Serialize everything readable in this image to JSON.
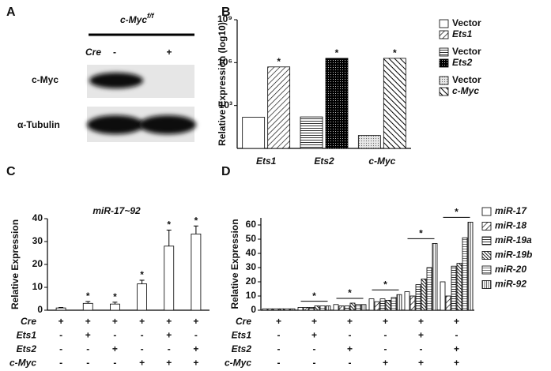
{
  "panel_labels": [
    "A",
    "B",
    "C",
    "D"
  ],
  "blot": {
    "header": "c-Myc",
    "header_sup": "f/f",
    "cre_label": "Cre",
    "lanes": [
      "-",
      "+"
    ],
    "rows": [
      "c-Myc",
      "α-Tubulin"
    ]
  },
  "chart_data": [
    {
      "type": "bar",
      "y_label": "Relative Expression (log10)",
      "log_scale": true,
      "categories": [
        "Ets1",
        "Ets2",
        "c-Myc"
      ],
      "ylim": [
        1,
        1000000000
      ],
      "yticks": [
        {
          "value": 1000,
          "label": "10³"
        },
        {
          "value": 1000000,
          "label": "10⁶"
        },
        {
          "value": 1000000000,
          "label": "10⁹"
        }
      ],
      "series": [
        {
          "name": "Vector",
          "pattern": "white",
          "italic": false,
          "values": [
            150,
            null,
            null
          ],
          "annotations": [
            null,
            null,
            null
          ]
        },
        {
          "name": "Ets1",
          "pattern": "diag",
          "italic": true,
          "values": [
            500000,
            null,
            null
          ],
          "annotations": [
            "*",
            null,
            null
          ]
        },
        {
          "name": "Vector",
          "pattern": "hstripe",
          "italic": false,
          "values": [
            null,
            160,
            null
          ],
          "annotations": [
            null,
            null,
            null
          ]
        },
        {
          "name": "Ets2",
          "pattern": "dotsdark",
          "italic": true,
          "values": [
            null,
            2000000,
            null
          ],
          "annotations": [
            null,
            "*",
            null
          ]
        },
        {
          "name": "Vector",
          "pattern": "dotslight",
          "italic": false,
          "values": [
            null,
            null,
            8
          ],
          "annotations": [
            null,
            null,
            null
          ]
        },
        {
          "name": "c-Myc",
          "pattern": "backdiag",
          "italic": true,
          "values": [
            null,
            null,
            2000000
          ],
          "annotations": [
            null,
            null,
            "*"
          ]
        }
      ]
    },
    {
      "type": "bar",
      "title": "miR-17~92",
      "y_label": "Relative Expression",
      "ylim": [
        0,
        40
      ],
      "yticks": [
        0,
        10,
        20,
        30,
        40
      ],
      "pattern": "white",
      "values": [
        1,
        3,
        2.7,
        11.5,
        28,
        33.3
      ],
      "errors": [
        0.2,
        0.8,
        0.8,
        1.6,
        7,
        3.5
      ],
      "annotations": [
        null,
        "*",
        "*",
        "*",
        "*",
        "*"
      ],
      "conditions": [
        {
          "label": "Cre",
          "values": [
            "+",
            "+",
            "+",
            "+",
            "+",
            "+"
          ]
        },
        {
          "label": "Ets1",
          "values": [
            "-",
            "+",
            "-",
            "-",
            "+",
            "-"
          ]
        },
        {
          "label": "Ets2",
          "values": [
            "-",
            "-",
            "+",
            "-",
            "-",
            "+"
          ]
        },
        {
          "label": "c-Myc",
          "values": [
            "-",
            "-",
            "-",
            "+",
            "+",
            "+"
          ]
        }
      ]
    },
    {
      "type": "bar",
      "y_label": "Relative Expression",
      "ylim": [
        0,
        65
      ],
      "yticks": [
        0,
        10,
        20,
        30,
        40,
        50,
        60
      ],
      "series": [
        {
          "name": "miR-17",
          "pattern": "white",
          "italic": true,
          "values": [
            1,
            2,
            4,
            8,
            13,
            20
          ]
        },
        {
          "name": "miR-18",
          "pattern": "diag",
          "italic": true,
          "values": [
            1,
            2,
            3,
            6,
            10,
            10
          ]
        },
        {
          "name": "miR-19a",
          "pattern": "hstripe",
          "italic": true,
          "values": [
            1,
            2,
            3,
            8,
            18,
            31
          ]
        },
        {
          "name": "miR-19b",
          "pattern": "diagdense",
          "italic": true,
          "values": [
            1,
            3,
            5,
            7,
            22,
            33
          ]
        },
        {
          "name": "miR-20",
          "pattern": "hline",
          "italic": true,
          "values": [
            1,
            3,
            4,
            9,
            30,
            51
          ]
        },
        {
          "name": "miR-92",
          "pattern": "vline",
          "italic": true,
          "values": [
            1,
            3,
            4,
            11,
            47,
            62
          ]
        }
      ],
      "group_annotations": [
        null,
        "*",
        "*",
        "*",
        "*",
        "*"
      ],
      "conditions": [
        {
          "label": "Cre",
          "values": [
            "+",
            "+",
            "+",
            "+",
            "+",
            "+"
          ]
        },
        {
          "label": "Ets1",
          "values": [
            "-",
            "+",
            "-",
            "-",
            "+",
            "-"
          ]
        },
        {
          "label": "Ets2",
          "values": [
            "-",
            "-",
            "+",
            "-",
            "-",
            "+"
          ]
        },
        {
          "label": "c-Myc",
          "values": [
            "-",
            "-",
            "-",
            "+",
            "+",
            "+"
          ]
        }
      ]
    }
  ]
}
